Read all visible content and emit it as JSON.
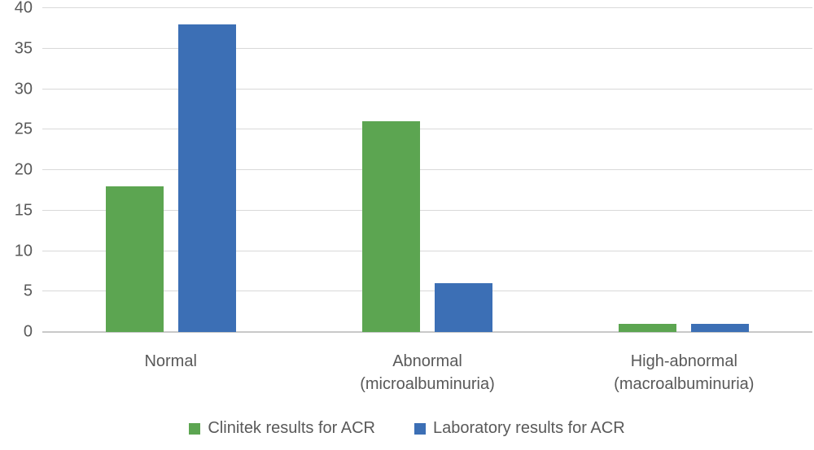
{
  "figure": {
    "background_color": "#ffffff",
    "tick_label_color": "#595959",
    "gridline_color": "#d9d9d9",
    "axis_line_color": "#c9c9c9"
  },
  "chart_data": {
    "type": "bar",
    "title": "",
    "xlabel": "",
    "ylabel": "",
    "categories": [
      "Normal",
      "Abnormal\n(microalbuminuria)",
      "High-abnormal\n(macroalbuminuria)"
    ],
    "series": [
      {
        "name": "Clinitek results for ACR",
        "color": "#5ca551",
        "values": [
          18,
          26,
          1
        ]
      },
      {
        "name": "Laboratory results for ACR",
        "color": "#3c6fb5",
        "values": [
          38,
          6,
          1
        ]
      }
    ],
    "ylim": [
      0,
      40
    ],
    "yticks": [
      0,
      5,
      10,
      15,
      20,
      25,
      30,
      35,
      40
    ],
    "grid": true,
    "legend_position": "bottom"
  }
}
